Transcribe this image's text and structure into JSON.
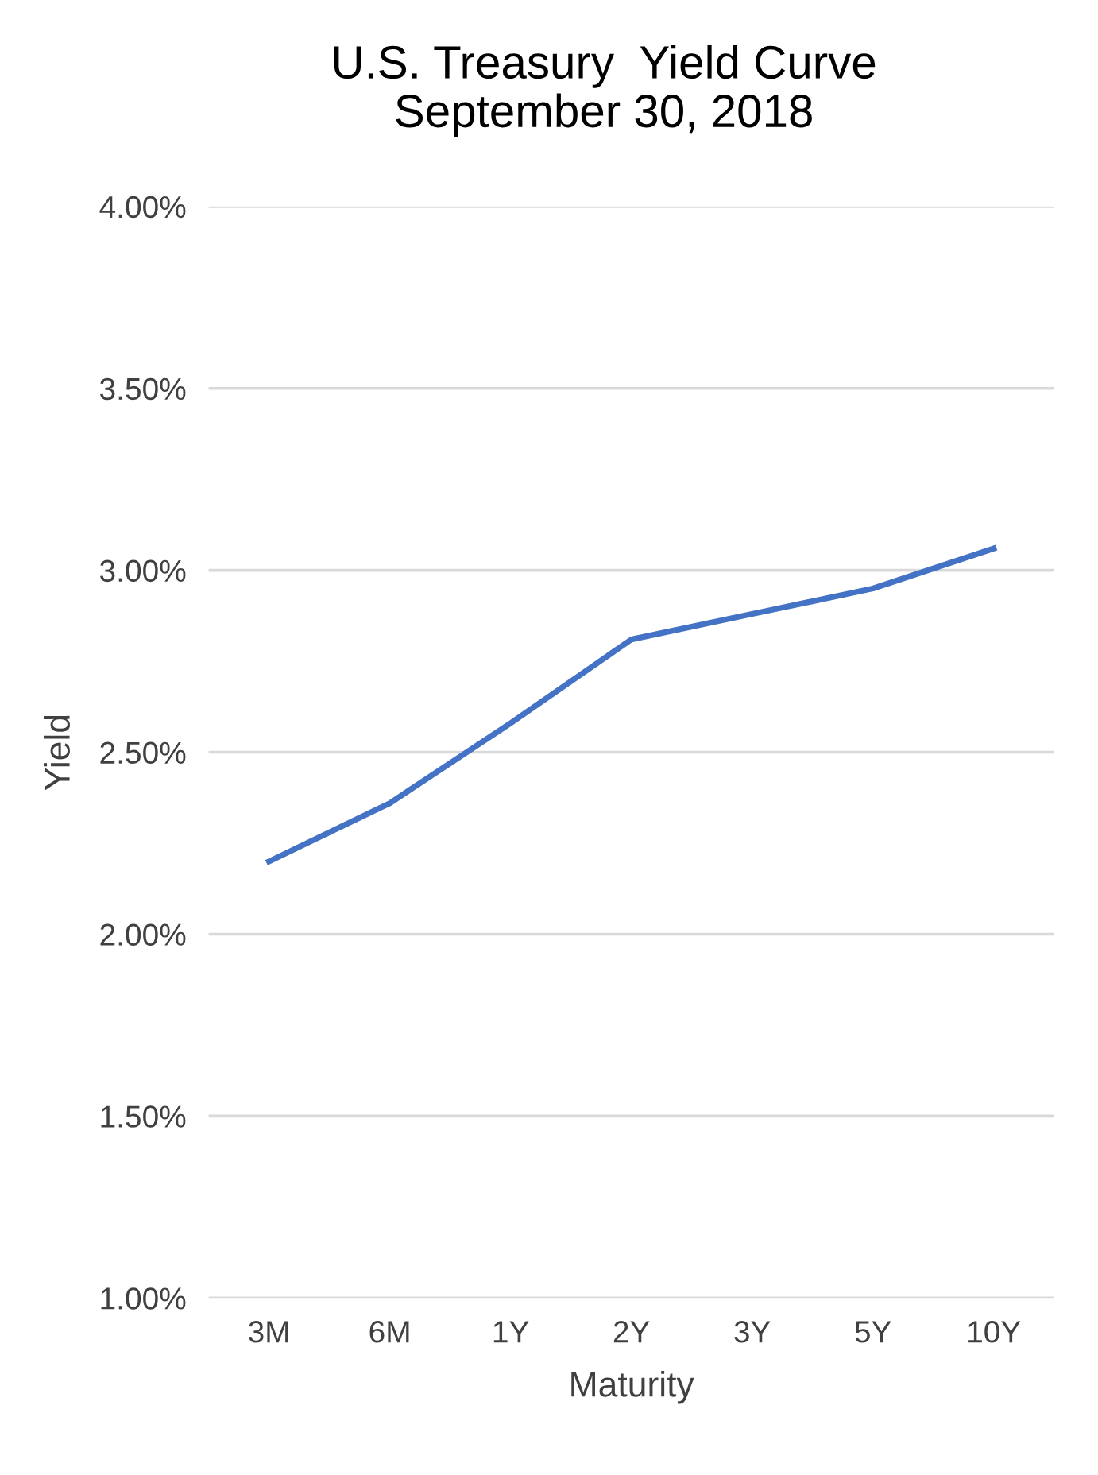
{
  "chart_data": {
    "type": "line",
    "title": "U.S. Treasury  Yield Curve",
    "subtitle": "September 30, 2018",
    "xlabel": "Maturity",
    "ylabel": "Yield",
    "categories": [
      "3M",
      "6M",
      "1Y",
      "2Y",
      "3Y",
      "5Y",
      "10Y"
    ],
    "series": [
      {
        "color": "#4472c4",
        "values": [
          2.2,
          2.36,
          2.58,
          2.81,
          2.88,
          2.95,
          3.06
        ]
      }
    ],
    "ylim": [
      1.0,
      4.0
    ],
    "yticks": [
      {
        "value": 1.0,
        "label": "1.00%"
      },
      {
        "value": 1.5,
        "label": "1.50%"
      },
      {
        "value": 2.0,
        "label": "2.00%"
      },
      {
        "value": 2.5,
        "label": "2.50%"
      },
      {
        "value": 3.0,
        "label": "3.00%"
      },
      {
        "value": 3.5,
        "label": "3.50%"
      },
      {
        "value": 4.0,
        "label": "4.00%"
      }
    ],
    "grid": "y",
    "marker": "none",
    "line_style": "solid"
  }
}
